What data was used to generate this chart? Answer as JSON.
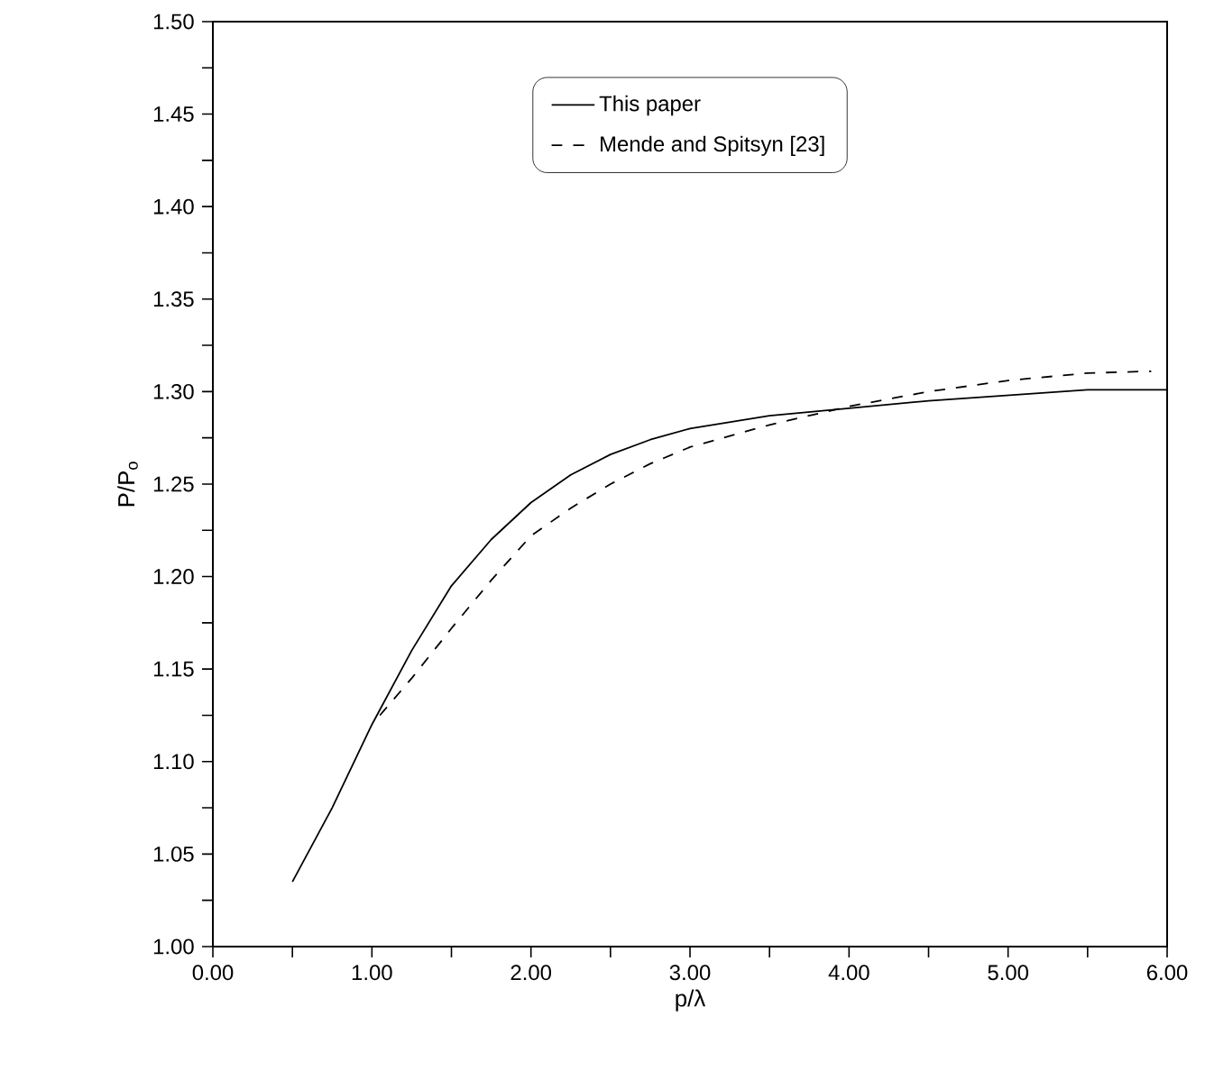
{
  "chart_data": {
    "type": "line",
    "xlabel": "p/λ",
    "ylabel": "P/P$_{o}$",
    "xlim": [
      0,
      6
    ],
    "ylim": [
      1.0,
      1.5
    ],
    "xticks": [
      {
        "value": 0,
        "label": "0.00"
      },
      {
        "value": 0.5,
        "label": null
      },
      {
        "value": 1,
        "label": "1.00"
      },
      {
        "value": 1.5,
        "label": null
      },
      {
        "value": 2,
        "label": "2.00"
      },
      {
        "value": 2.5,
        "label": null
      },
      {
        "value": 3,
        "label": "3.00"
      },
      {
        "value": 3.5,
        "label": null
      },
      {
        "value": 4,
        "label": "4.00"
      },
      {
        "value": 4.5,
        "label": null
      },
      {
        "value": 5,
        "label": "5.00"
      },
      {
        "value": 5.5,
        "label": null
      },
      {
        "value": 6,
        "label": "6.00"
      }
    ],
    "yticks": [
      {
        "value": 1.0,
        "label": "1.00"
      },
      {
        "value": 1.025,
        "label": null
      },
      {
        "value": 1.05,
        "label": "1.05"
      },
      {
        "value": 1.075,
        "label": null
      },
      {
        "value": 1.1,
        "label": "1.10"
      },
      {
        "value": 1.125,
        "label": null
      },
      {
        "value": 1.15,
        "label": "1.15"
      },
      {
        "value": 1.175,
        "label": null
      },
      {
        "value": 1.2,
        "label": "1.20"
      },
      {
        "value": 1.225,
        "label": null
      },
      {
        "value": 1.25,
        "label": "1.25"
      },
      {
        "value": 1.275,
        "label": null
      },
      {
        "value": 1.3,
        "label": "1.30"
      },
      {
        "value": 1.325,
        "label": null
      },
      {
        "value": 1.35,
        "label": "1.35"
      },
      {
        "value": 1.375,
        "label": null
      },
      {
        "value": 1.4,
        "label": "1.40"
      },
      {
        "value": 1.425,
        "label": null
      },
      {
        "value": 1.45,
        "label": "1.45"
      },
      {
        "value": 1.475,
        "label": null
      },
      {
        "value": 1.5,
        "label": "1.50"
      }
    ],
    "legend": "top",
    "grid": false,
    "marker": "none",
    "series": [
      {
        "name": "This paper",
        "color": "#000000",
        "line_style": "solid",
        "x": [
          0.5,
          0.75,
          1.0,
          1.25,
          1.5,
          1.75,
          2.0,
          2.25,
          2.5,
          2.75,
          3.0,
          3.5,
          4.0,
          4.5,
          5.0,
          5.5,
          6.0
        ],
        "values": [
          1.035,
          1.075,
          1.12,
          1.16,
          1.195,
          1.22,
          1.24,
          1.255,
          1.266,
          1.274,
          1.28,
          1.287,
          1.291,
          1.295,
          1.298,
          1.301,
          1.301
        ]
      },
      {
        "name": "Mende and Spitsyn [23]",
        "color": "#000000",
        "line_style": "dashed",
        "x": [
          1.05,
          1.25,
          1.5,
          1.75,
          2.0,
          2.25,
          2.5,
          2.75,
          3.0,
          3.5,
          4.0,
          4.5,
          5.0,
          5.5,
          5.9
        ],
        "values": [
          1.125,
          1.145,
          1.172,
          1.198,
          1.222,
          1.237,
          1.25,
          1.261,
          1.27,
          1.282,
          1.292,
          1.3,
          1.306,
          1.31,
          1.311
        ]
      }
    ]
  }
}
